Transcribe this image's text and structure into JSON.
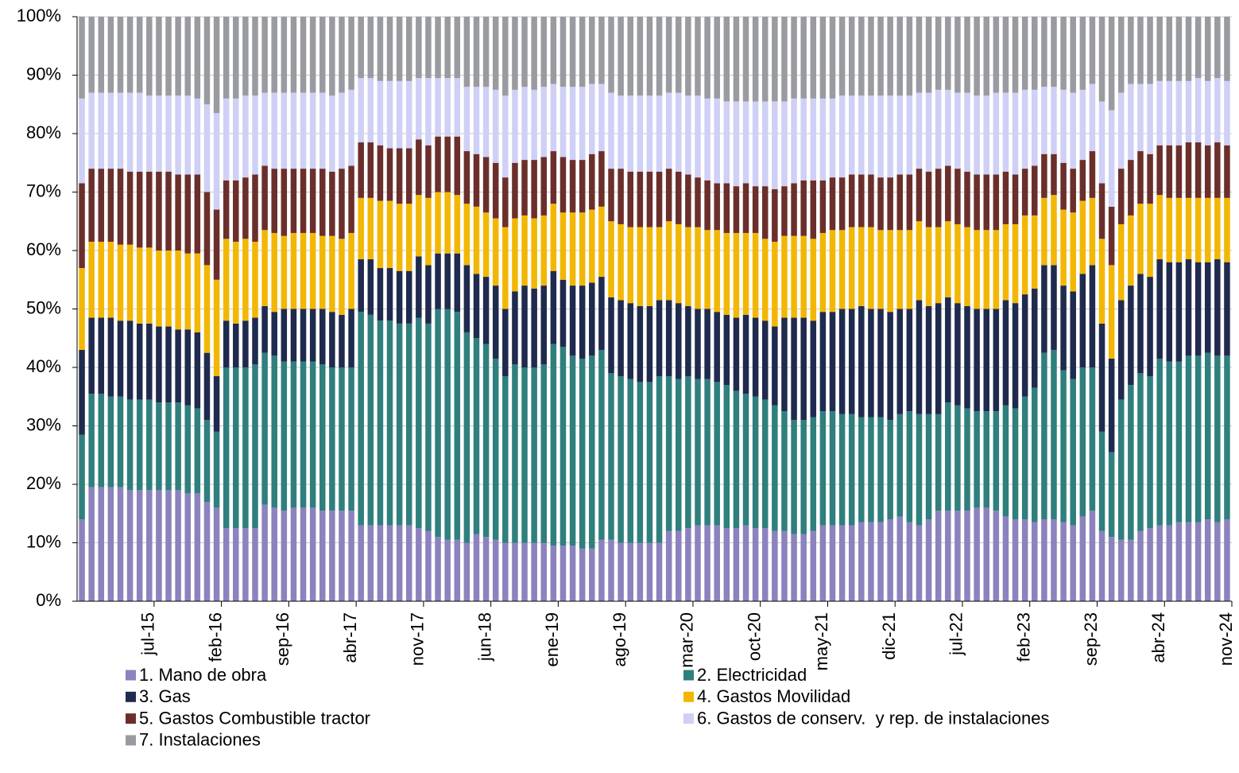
{
  "chart_data": {
    "type": "stacked-bar",
    "categories": [
      null,
      null,
      null,
      null,
      null,
      null,
      null,
      "jul-15",
      null,
      null,
      null,
      null,
      null,
      null,
      "feb-16",
      null,
      null,
      null,
      null,
      null,
      null,
      "sep-16",
      null,
      null,
      null,
      null,
      null,
      null,
      "abr-17",
      null,
      null,
      null,
      null,
      null,
      null,
      "nov-17",
      null,
      null,
      null,
      null,
      null,
      null,
      "jun-18",
      null,
      null,
      null,
      null,
      null,
      null,
      "ene-19",
      null,
      null,
      null,
      null,
      null,
      null,
      "ago-19",
      null,
      null,
      null,
      null,
      null,
      null,
      "mar-20",
      null,
      null,
      null,
      null,
      null,
      null,
      "oct-20",
      null,
      null,
      null,
      null,
      null,
      null,
      "may-21",
      null,
      null,
      null,
      null,
      null,
      null,
      "dic-21",
      null,
      null,
      null,
      null,
      null,
      null,
      "jul-22",
      null,
      null,
      null,
      null,
      null,
      null,
      "feb-23",
      null,
      null,
      null,
      null,
      null,
      null,
      "sep-23",
      null,
      null,
      null,
      null,
      null,
      null,
      "abr-24",
      null,
      null,
      null,
      null,
      null,
      null,
      "nov-24"
    ],
    "series": [
      {
        "name": "1. Mano de obra",
        "color": "#8b82be",
        "values": [
          14,
          19.5,
          19.5,
          19.5,
          19.5,
          19,
          19,
          19,
          19,
          19,
          19,
          18.5,
          18.5,
          17,
          16,
          12.5,
          12.5,
          12.5,
          12.5,
          16.5,
          16,
          15.5,
          16,
          16,
          16,
          15.5,
          15.5,
          15.5,
          15.5,
          13,
          13,
          13,
          13,
          13,
          13,
          12.5,
          12,
          11,
          10.5,
          10.5,
          10,
          11.5,
          11,
          10.5,
          10,
          10,
          10,
          10,
          10,
          9.5,
          9.5,
          9.5,
          9,
          9,
          10.5,
          10.5,
          10,
          10,
          10,
          10,
          10,
          12,
          12,
          12.5,
          13,
          13,
          13,
          12.5,
          12.5,
          13,
          12.5,
          12.5,
          12,
          12,
          11.5,
          11.5,
          12,
          13,
          13,
          13,
          13,
          13.5,
          13.5,
          13.5,
          14,
          14.5,
          13.5,
          13,
          14,
          15.5,
          15.5,
          15.5,
          15.5,
          16,
          16,
          15.5,
          14.5,
          14,
          14,
          13.5,
          14,
          14,
          13.5,
          13,
          14.5,
          15.5,
          12,
          11,
          10.5,
          10.5,
          12,
          12.5,
          13,
          13,
          13.5,
          13.5,
          13.5,
          14,
          13.5,
          14
        ]
      },
      {
        "name": "2. Electricidad",
        "color": "#2f7f7d",
        "values": [
          14.5,
          16,
          16,
          15.5,
          15.5,
          15.5,
          15.5,
          15.5,
          15,
          15,
          15,
          15,
          14.5,
          14,
          13,
          27.5,
          27.5,
          27.5,
          28,
          26,
          26,
          25.5,
          25,
          25,
          25,
          25,
          24.5,
          24.5,
          24.5,
          36.5,
          36,
          35,
          35,
          34.5,
          34.5,
          36,
          35.5,
          39,
          39.5,
          39,
          36,
          33.5,
          33,
          31,
          28.5,
          30.5,
          30,
          30,
          30.5,
          34.5,
          34,
          32.5,
          32.5,
          33,
          32.5,
          28.5,
          28.5,
          28,
          27.5,
          27.5,
          28.5,
          26.5,
          26,
          26,
          25,
          25,
          24.5,
          24.5,
          23.5,
          22.5,
          22.5,
          22,
          21.5,
          20.5,
          19.5,
          19.5,
          19.5,
          19.5,
          19.5,
          19,
          19,
          18,
          18,
          18,
          17,
          17.5,
          19,
          19,
          18,
          16.5,
          18.5,
          18,
          17.5,
          16.5,
          16.5,
          17,
          19,
          19,
          21,
          23,
          28.5,
          29,
          26,
          25,
          25.5,
          24.5,
          17,
          14.5,
          24,
          26.5,
          27,
          26,
          28.5,
          28,
          27.5,
          28.5,
          28.5,
          28.5,
          28.5,
          28
        ]
      },
      {
        "name": "3. Gas",
        "color": "#1f2a4e",
        "values": [
          14.5,
          13,
          13,
          13.5,
          13,
          13.5,
          13,
          13,
          13,
          13,
          12.5,
          13,
          13,
          11.5,
          9.5,
          8,
          7.5,
          8,
          8,
          8,
          7.5,
          9,
          9,
          9,
          9,
          9.5,
          9.5,
          9,
          10,
          9,
          9.5,
          9,
          9,
          9,
          9,
          10.5,
          10,
          9.5,
          9.5,
          10,
          11.5,
          11,
          11.5,
          12.5,
          11.5,
          12.5,
          14,
          13.5,
          13.5,
          12.5,
          11.5,
          12,
          12.5,
          12.5,
          12.5,
          13,
          13,
          13,
          13,
          13,
          13,
          13,
          13,
          12,
          12,
          12,
          12,
          12,
          12.5,
          13.5,
          13.5,
          13.5,
          13.5,
          16,
          17.5,
          17.5,
          16.5,
          17,
          17,
          18,
          18,
          19,
          18.5,
          18.5,
          18.5,
          18,
          17.5,
          19.5,
          18.5,
          19,
          18,
          17.5,
          17.5,
          17.5,
          17.5,
          17.5,
          18,
          18,
          17.5,
          17,
          15,
          14.5,
          14.5,
          15,
          16,
          17.5,
          18.5,
          16,
          17,
          17,
          17,
          17,
          17,
          17,
          17,
          16.5,
          16,
          15.5,
          16.5,
          16
        ]
      },
      {
        "name": "4. Gastos Movilidad",
        "color": "#f2b705",
        "values": [
          14,
          13,
          13,
          13,
          13,
          13,
          13,
          13,
          13,
          13,
          13.5,
          13,
          13.5,
          15,
          16.5,
          14,
          14,
          14,
          13,
          13,
          13.5,
          12.5,
          13,
          13,
          13,
          12.5,
          13,
          13,
          13,
          10.5,
          10.5,
          11.5,
          11.5,
          11.5,
          11.5,
          10.5,
          11.5,
          10.5,
          10.5,
          10,
          10.5,
          11.5,
          11,
          11.5,
          14,
          12.5,
          12,
          12,
          12,
          11.5,
          11.5,
          12.5,
          12.5,
          12.5,
          12,
          13,
          13,
          13,
          13.5,
          13.5,
          12.5,
          13.5,
          13.5,
          13.5,
          14,
          13.5,
          14,
          14,
          14.5,
          14,
          14.5,
          14,
          14.5,
          14,
          14,
          14,
          14,
          13.5,
          14,
          13.5,
          14,
          13.5,
          14,
          13.5,
          14,
          13.5,
          13.5,
          13.5,
          13.5,
          13,
          13,
          13.5,
          13.5,
          13.5,
          13.5,
          13.5,
          13,
          13.5,
          13.5,
          12.5,
          11.5,
          12,
          13,
          13.5,
          12.5,
          11.5,
          14.5,
          16,
          13,
          12,
          12,
          12.5,
          11,
          11,
          11,
          10.5,
          11,
          11,
          10.5,
          11
        ]
      },
      {
        "name": "5. Gastos Combustible tractor",
        "color": "#6b2f2b",
        "values": [
          14.5,
          12.5,
          12.5,
          12.5,
          13,
          12.5,
          13,
          13,
          13.5,
          13.5,
          13,
          13.5,
          13.5,
          12.5,
          12,
          10,
          10.5,
          10.5,
          11.5,
          11,
          11,
          11.5,
          11,
          11,
          11,
          11.5,
          11,
          12,
          11.5,
          9.5,
          9.5,
          9.5,
          9,
          9.5,
          9.5,
          9.5,
          9,
          9.5,
          9.5,
          10,
          9,
          9,
          9.5,
          9.5,
          8.5,
          9.5,
          9.5,
          10,
          10,
          9,
          9.5,
          9,
          9,
          9.5,
          9.5,
          9,
          9.5,
          9.5,
          9.5,
          9.5,
          9.5,
          9,
          9,
          9,
          8.5,
          8.5,
          8,
          8.5,
          8,
          8.5,
          8,
          9,
          9,
          8.5,
          9,
          9.5,
          10,
          9,
          9,
          9,
          9,
          9,
          9,
          9,
          9,
          9.5,
          9.5,
          9,
          9.5,
          10,
          9.5,
          9.5,
          9.5,
          9.5,
          9.5,
          9.5,
          9,
          8.5,
          8,
          8.5,
          7.5,
          7,
          8,
          7.5,
          7,
          8,
          9.5,
          10,
          9.5,
          9.5,
          9,
          8.5,
          8.5,
          9,
          9,
          9.5,
          9.5,
          9,
          9.5,
          9
        ]
      },
      {
        "name": "6. Gastos de conserv.  y rep. de instalaciones",
        "color": "#cfd0f6",
        "values": [
          14.5,
          13,
          13,
          13,
          13,
          13.5,
          13.5,
          13,
          13,
          13,
          13.5,
          13.5,
          13,
          15,
          16.5,
          14,
          14,
          14,
          13.5,
          12.5,
          13,
          13,
          13,
          13,
          13,
          13,
          13,
          13,
          13,
          11,
          11,
          11,
          11.5,
          11.5,
          11.5,
          10.5,
          11.5,
          10,
          10,
          10,
          11,
          11.5,
          12,
          12.5,
          14,
          12.5,
          12.5,
          12,
          12,
          11.5,
          12,
          12.5,
          12.5,
          12,
          11.5,
          13,
          12.5,
          13,
          13,
          13,
          13,
          13,
          13.5,
          13.5,
          14,
          14,
          14.5,
          14,
          14.5,
          14,
          14.5,
          14.5,
          15,
          14.5,
          14.5,
          14,
          14,
          14,
          13.5,
          14,
          13.5,
          13.5,
          13.5,
          14,
          14,
          13.5,
          13.5,
          13,
          13.5,
          13.5,
          13,
          13,
          13.5,
          13.5,
          13.5,
          14,
          13.5,
          14,
          13.5,
          13,
          11.5,
          11.5,
          12.5,
          13,
          12,
          11.5,
          14,
          16.5,
          13,
          13,
          11.5,
          12,
          11,
          11,
          11,
          10.5,
          11,
          11,
          11,
          11
        ]
      },
      {
        "name": "7. Instalaciones",
        "color": "#9a9ba1",
        "values": [
          14,
          13,
          13,
          13,
          13,
          13,
          13,
          13.5,
          13.5,
          13.5,
          13.5,
          13.5,
          14,
          15,
          16.5,
          14,
          14,
          13.5,
          13.5,
          13,
          13,
          13,
          13,
          13,
          13,
          13,
          13.5,
          13,
          12.5,
          10.5,
          10.5,
          11,
          11,
          11,
          11,
          10.5,
          10.5,
          10.5,
          10.5,
          10.5,
          12,
          12,
          12,
          12.5,
          13.5,
          12.5,
          12,
          12.5,
          12,
          11.5,
          12,
          12,
          12,
          11.5,
          11.5,
          13,
          13.5,
          13.5,
          13.5,
          13.5,
          13.5,
          13,
          13,
          13.5,
          13.5,
          14,
          14,
          14.5,
          14.5,
          14.5,
          14.5,
          14.5,
          14.5,
          14.5,
          14,
          14,
          14,
          14,
          14,
          13.5,
          13.5,
          13.5,
          13.5,
          13.5,
          13.5,
          13.5,
          13.5,
          13,
          13,
          12.5,
          12.5,
          13,
          13,
          13.5,
          13.5,
          13,
          13,
          13,
          12.5,
          12.5,
          12,
          12,
          12.5,
          13,
          12.5,
          11.5,
          14.5,
          16,
          13,
          11.5,
          11.5,
          11.5,
          11,
          11,
          11,
          11,
          10.5,
          11,
          10.5,
          11
        ]
      }
    ],
    "ylim": [
      0,
      100
    ],
    "yticks": [
      {
        "value": 0,
        "label": "0%"
      },
      {
        "value": 10,
        "label": "10%"
      },
      {
        "value": 20,
        "label": "20%"
      },
      {
        "value": 30,
        "label": "30%"
      },
      {
        "value": 40,
        "label": "40%"
      },
      {
        "value": 50,
        "label": "50%"
      },
      {
        "value": 60,
        "label": "60%"
      },
      {
        "value": 70,
        "label": "70%"
      },
      {
        "value": 80,
        "label": "80%"
      },
      {
        "value": 90,
        "label": "90%"
      },
      {
        "value": 100,
        "label": "100%"
      }
    ],
    "grid": true,
    "legend": "bottom"
  }
}
